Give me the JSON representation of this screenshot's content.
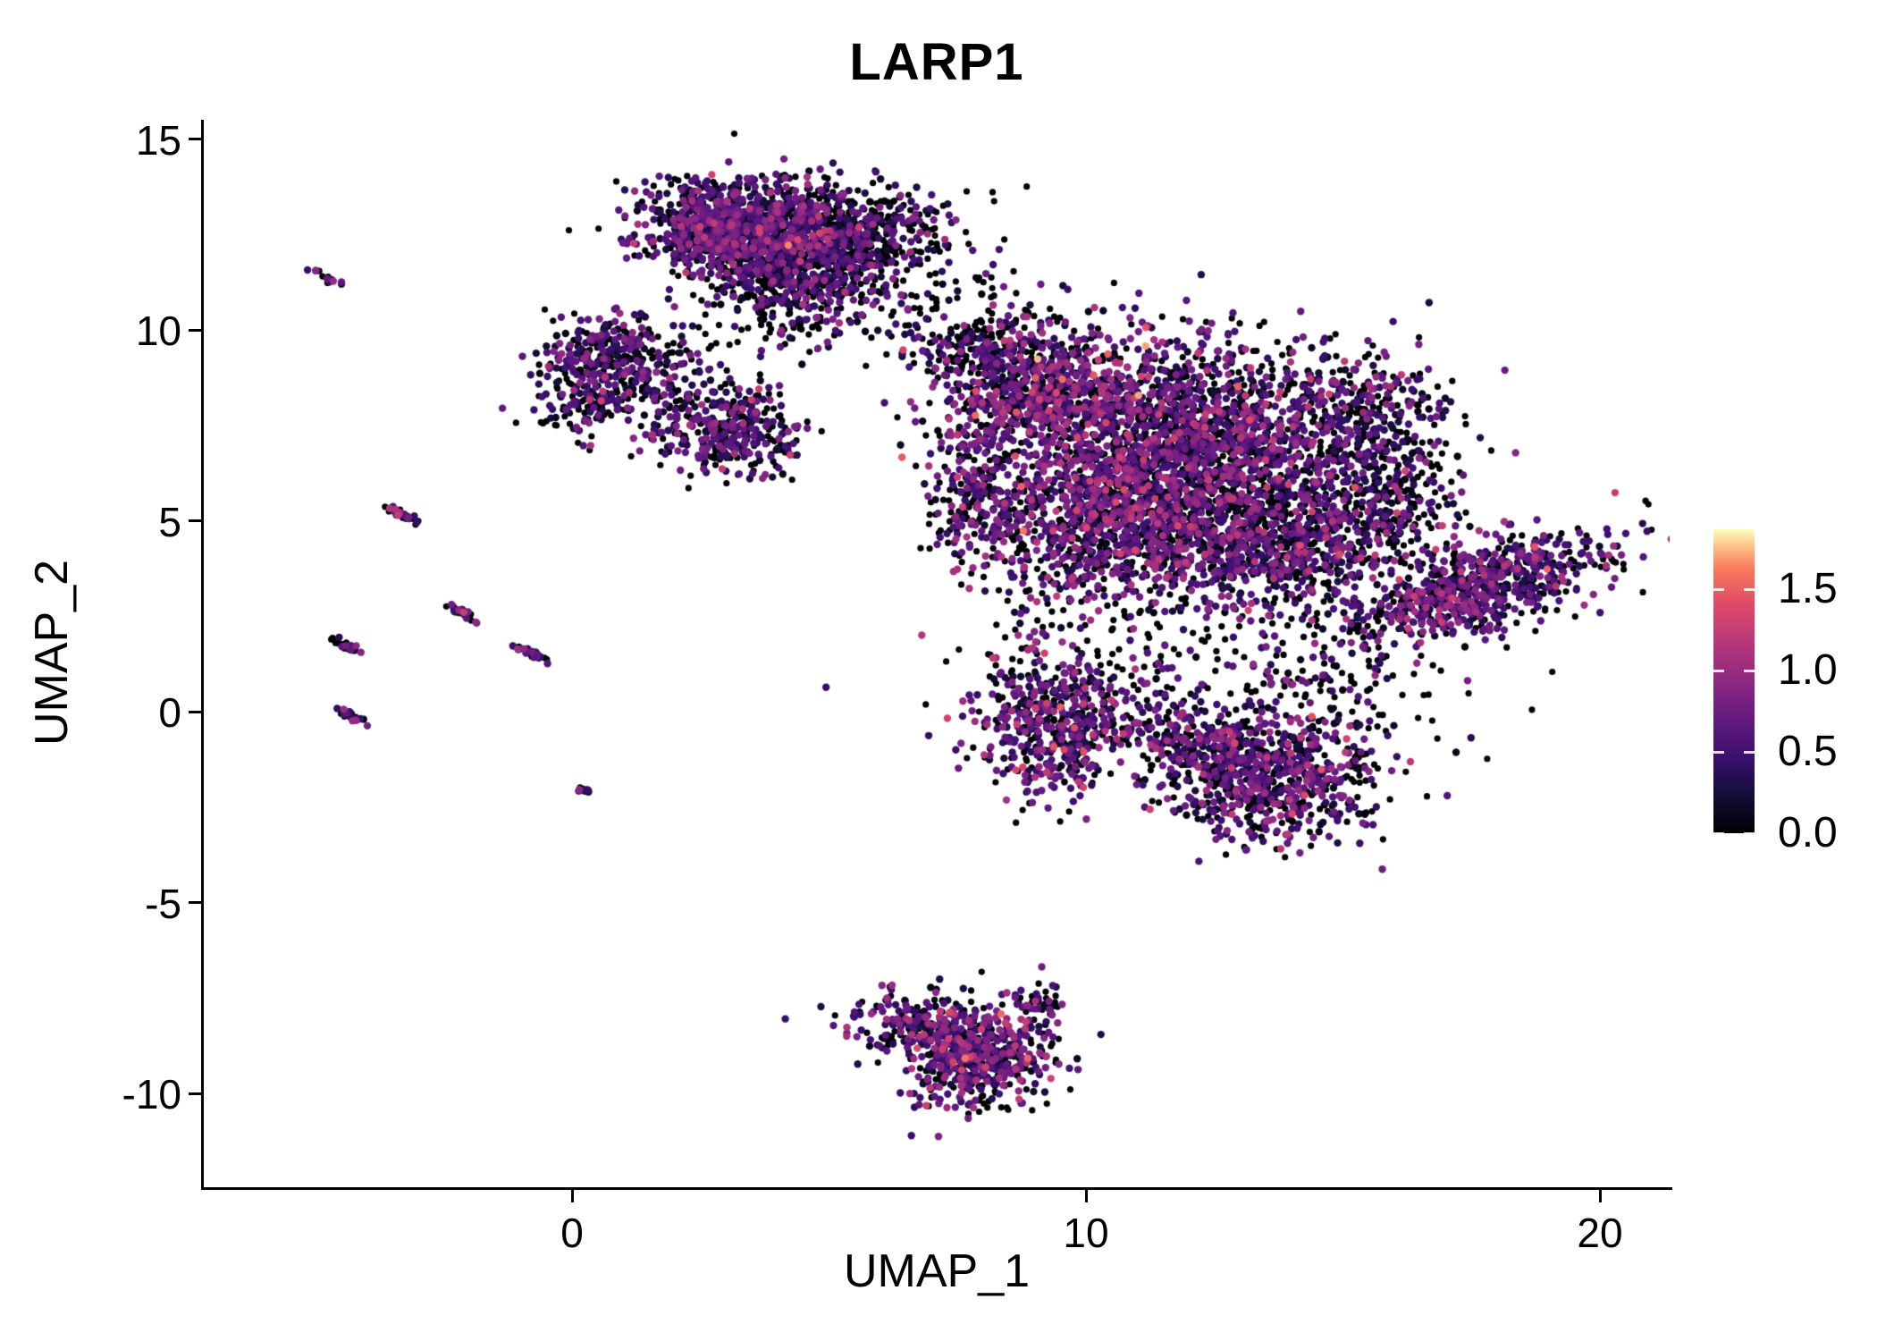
{
  "title": "LARP1",
  "chart_data": {
    "type": "scatter",
    "title": "LARP1",
    "xlabel": "UMAP_1",
    "ylabel": "UMAP_2",
    "x_ticks": [
      "0",
      "10",
      "20"
    ],
    "x_tick_values": [
      0,
      10,
      20
    ],
    "y_ticks": [
      "-10",
      "-5",
      "0",
      "5",
      "10",
      "15"
    ],
    "y_tick_values": [
      -10,
      -5,
      0,
      5,
      10,
      15
    ],
    "x_range": [
      -7.2,
      21.4
    ],
    "y_range": [
      -12.5,
      15.5
    ],
    "grid": false,
    "background": "#ffffff",
    "axis_color": "#000000",
    "legend": {
      "position": "right",
      "ticks": [
        "0.0",
        "0.5",
        "1.0",
        "1.5"
      ],
      "tick_values": [
        0.0,
        0.5,
        1.0,
        1.5
      ],
      "vmin": 0,
      "vmax": 1.87,
      "colormap": "magma",
      "stops": [
        [
          0.0,
          "#000004"
        ],
        [
          0.125,
          "#140e36"
        ],
        [
          0.25,
          "#3b0f70"
        ],
        [
          0.375,
          "#641a80"
        ],
        [
          0.5,
          "#8c2981"
        ],
        [
          0.625,
          "#b73779"
        ],
        [
          0.75,
          "#de4968"
        ],
        [
          0.875,
          "#fa7d5e"
        ],
        [
          0.95,
          "#fec98d"
        ],
        [
          1.0,
          "#fcfdbf"
        ]
      ]
    },
    "point_style": {
      "radius_px": 4.2,
      "zero_radius_px": 3.6,
      "zero_color": "#000004"
    },
    "seed": 42,
    "clusters": [
      {
        "x": 3.1,
        "y": 12.6,
        "sx": 0.9,
        "sy": 0.65,
        "rot": 0,
        "n": 900,
        "zero": 0.32,
        "mean": 0.55,
        "sd": 0.28
      },
      {
        "x": 4.6,
        "y": 12.1,
        "sx": 0.9,
        "sy": 0.8,
        "rot": 0,
        "n": 700,
        "zero": 0.38,
        "mean": 0.5,
        "sd": 0.3
      },
      {
        "x": 5.9,
        "y": 12.6,
        "sx": 0.7,
        "sy": 0.6,
        "rot": 0,
        "n": 220,
        "zero": 0.55,
        "mean": 0.45,
        "sd": 0.3
      },
      {
        "x": 4.3,
        "y": 10.8,
        "sx": 0.7,
        "sy": 0.7,
        "rot": 0,
        "n": 180,
        "zero": 0.5,
        "mean": 0.45,
        "sd": 0.3
      },
      {
        "x": 0.6,
        "y": 9.4,
        "sx": 0.65,
        "sy": 0.45,
        "rot": 0,
        "n": 260,
        "zero": 0.4,
        "mean": 0.5,
        "sd": 0.3
      },
      {
        "x": 0.3,
        "y": 8.0,
        "sx": 0.45,
        "sy": 0.4,
        "rot": 0,
        "n": 130,
        "zero": 0.45,
        "mean": 0.45,
        "sd": 0.3
      },
      {
        "x": 1.6,
        "y": 8.6,
        "sx": 0.5,
        "sy": 0.5,
        "rot": 0,
        "n": 70,
        "zero": 0.55,
        "mean": 0.4,
        "sd": 0.3
      },
      {
        "x": 1.9,
        "y": 9.7,
        "sx": 0.8,
        "sy": 0.5,
        "rot": 0,
        "n": 40,
        "zero": 0.6,
        "mean": 0.4,
        "sd": 0.25
      },
      {
        "x": 3.0,
        "y": 7.4,
        "sx": 0.75,
        "sy": 0.6,
        "rot": -20,
        "n": 380,
        "zero": 0.35,
        "mean": 0.55,
        "sd": 0.3
      },
      {
        "x": 9.2,
        "y": 8.4,
        "sx": 1.1,
        "sy": 0.95,
        "rot": 0,
        "n": 850,
        "zero": 0.3,
        "mean": 0.65,
        "sd": 0.33
      },
      {
        "x": 12.2,
        "y": 7.2,
        "sx": 1.4,
        "sy": 1.2,
        "rot": 0,
        "n": 1400,
        "zero": 0.33,
        "mean": 0.6,
        "sd": 0.33
      },
      {
        "x": 10.6,
        "y": 5.1,
        "sx": 1.4,
        "sy": 1.1,
        "rot": 0,
        "n": 1200,
        "zero": 0.35,
        "mean": 0.6,
        "sd": 0.32
      },
      {
        "x": 13.7,
        "y": 4.6,
        "sx": 1.2,
        "sy": 1.0,
        "rot": 0,
        "n": 850,
        "zero": 0.4,
        "mean": 0.55,
        "sd": 0.3
      },
      {
        "x": 15.3,
        "y": 7.6,
        "sx": 0.85,
        "sy": 1.0,
        "rot": 0,
        "n": 380,
        "zero": 0.45,
        "mean": 0.5,
        "sd": 0.3
      },
      {
        "x": 15.9,
        "y": 5.3,
        "sx": 0.7,
        "sy": 0.9,
        "rot": 0,
        "n": 220,
        "zero": 0.5,
        "mean": 0.5,
        "sd": 0.3
      },
      {
        "x": 8.0,
        "y": 9.6,
        "sx": 0.6,
        "sy": 0.5,
        "rot": 0,
        "n": 120,
        "zero": 0.5,
        "mean": 0.5,
        "sd": 0.3
      },
      {
        "x": 7.9,
        "y": 5.6,
        "sx": 0.5,
        "sy": 0.9,
        "rot": 0,
        "n": 200,
        "zero": 0.4,
        "mean": 0.55,
        "sd": 0.3
      },
      {
        "x": 6.8,
        "y": 11.8,
        "sx": 1.0,
        "sy": 1.0,
        "rot": 0,
        "n": 60,
        "zero": 0.7,
        "mean": 0.35,
        "sd": 0.25
      },
      {
        "x": 7.2,
        "y": 10.4,
        "sx": 0.8,
        "sy": 0.6,
        "rot": 0,
        "n": 50,
        "zero": 0.6,
        "mean": 0.4,
        "sd": 0.25
      },
      {
        "x": 17.6,
        "y": 3.2,
        "sx": 1.35,
        "sy": 0.5,
        "rot": 25,
        "n": 750,
        "zero": 0.35,
        "mean": 0.6,
        "sd": 0.32
      },
      {
        "x": 9.4,
        "y": -0.2,
        "sx": 0.75,
        "sy": 1.0,
        "rot": 0,
        "n": 520,
        "zero": 0.33,
        "mean": 0.6,
        "sd": 0.32
      },
      {
        "x": 11.7,
        "y": -0.6,
        "sx": 0.9,
        "sy": 0.45,
        "rot": -15,
        "n": 200,
        "zero": 0.45,
        "mean": 0.5,
        "sd": 0.3
      },
      {
        "x": 13.6,
        "y": -1.7,
        "sx": 1.1,
        "sy": 0.85,
        "rot": -10,
        "n": 750,
        "zero": 0.33,
        "mean": 0.55,
        "sd": 0.32
      },
      {
        "x": 12.0,
        "y": 1.5,
        "sx": 2.5,
        "sy": 0.8,
        "rot": 0,
        "n": 150,
        "zero": 0.55,
        "mean": 0.4,
        "sd": 0.3
      },
      {
        "x": 14.5,
        "y": 0.3,
        "sx": 1.2,
        "sy": 0.8,
        "rot": 0,
        "n": 100,
        "zero": 0.5,
        "mean": 0.45,
        "sd": 0.3
      },
      {
        "x": 7.3,
        "y": -8.3,
        "sx": 0.95,
        "sy": 0.5,
        "rot": -10,
        "n": 380,
        "zero": 0.3,
        "mean": 0.6,
        "sd": 0.33
      },
      {
        "x": 7.9,
        "y": -9.3,
        "sx": 0.7,
        "sy": 0.55,
        "rot": 0,
        "n": 330,
        "zero": 0.3,
        "mean": 0.6,
        "sd": 0.33
      },
      {
        "x": 9.0,
        "y": -7.6,
        "sx": 0.25,
        "sy": 0.25,
        "rot": 0,
        "n": 40,
        "zero": 0.4,
        "mean": 0.5,
        "sd": 0.3
      },
      {
        "x": -4.8,
        "y": 11.4,
        "sx": 0.2,
        "sy": 0.045,
        "rot": -35,
        "n": 14,
        "zero": 0.45,
        "mean": 0.5,
        "sd": 0.3
      },
      {
        "x": -3.3,
        "y": 5.15,
        "sx": 0.2,
        "sy": 0.045,
        "rot": -35,
        "n": 40,
        "zero": 0.45,
        "mean": 0.5,
        "sd": 0.3
      },
      {
        "x": -2.15,
        "y": 2.6,
        "sx": 0.2,
        "sy": 0.045,
        "rot": -35,
        "n": 35,
        "zero": 0.45,
        "mean": 0.5,
        "sd": 0.3
      },
      {
        "x": -4.45,
        "y": 1.75,
        "sx": 0.2,
        "sy": 0.045,
        "rot": -35,
        "n": 30,
        "zero": 0.45,
        "mean": 0.5,
        "sd": 0.3
      },
      {
        "x": -0.75,
        "y": 1.5,
        "sx": 0.2,
        "sy": 0.045,
        "rot": -35,
        "n": 40,
        "zero": 0.45,
        "mean": 0.5,
        "sd": 0.3
      },
      {
        "x": -4.3,
        "y": -0.1,
        "sx": 0.2,
        "sy": 0.045,
        "rot": -35,
        "n": 26,
        "zero": 0.45,
        "mean": 0.5,
        "sd": 0.3
      },
      {
        "x": 0.3,
        "y": -2.1,
        "sx": 0.12,
        "sy": 0.04,
        "rot": -35,
        "n": 10,
        "zero": 0.45,
        "mean": 0.5,
        "sd": 0.3
      }
    ]
  }
}
